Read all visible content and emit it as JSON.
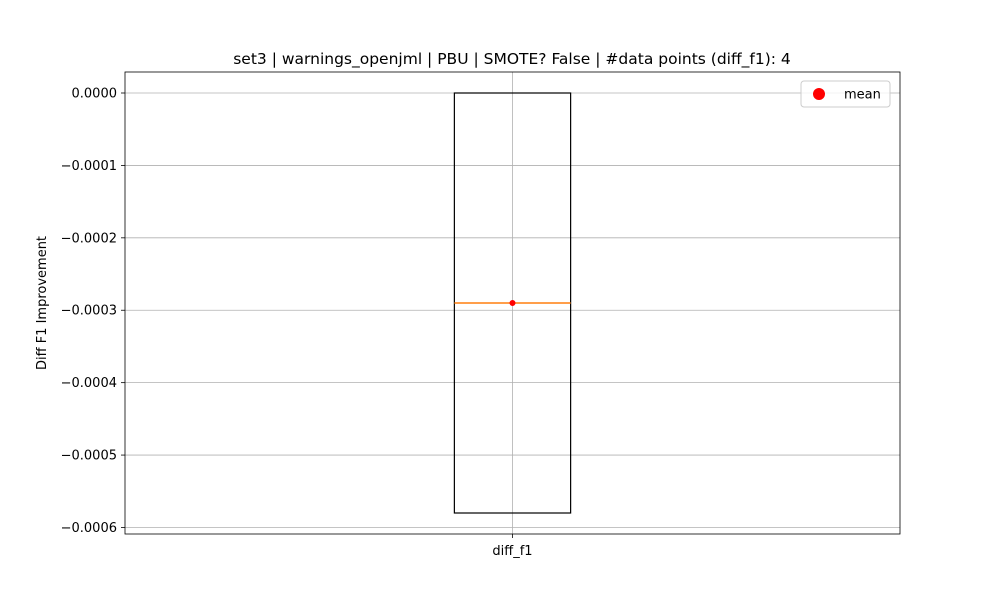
{
  "chart_data": {
    "type": "box",
    "title": "set3 | warnings_openjml | PBU | SMOTE? False | #data points (diff_f1): 4",
    "xlabel": "",
    "ylabel": "Diff F1 Improvement",
    "categories": [
      "diff_f1"
    ],
    "boxes": [
      {
        "name": "diff_f1",
        "whisker_low": -0.00058,
        "q1": -0.00058,
        "median": -0.00029,
        "q3": 0.0,
        "whisker_high": 0.0,
        "mean": -0.00029
      }
    ],
    "ylim": [
      -0.000609,
      2.9e-05
    ],
    "yticks": [
      0.0,
      -0.0001,
      -0.0002,
      -0.0003,
      -0.0004,
      -0.0005,
      -0.0006
    ],
    "ytick_labels": [
      "0.0000",
      "−0.0001",
      "−0.0002",
      "−0.0003",
      "−0.0004",
      "−0.0005",
      "−0.0006"
    ],
    "grid": true,
    "legend": {
      "position": "upper-right",
      "entries": [
        {
          "label": "mean",
          "color": "#ff0000",
          "marker": "circle"
        }
      ]
    },
    "colors": {
      "box": "#000000",
      "median": "#ff7f0e",
      "mean": "#ff0000",
      "grid": "#b0b0b0"
    }
  }
}
